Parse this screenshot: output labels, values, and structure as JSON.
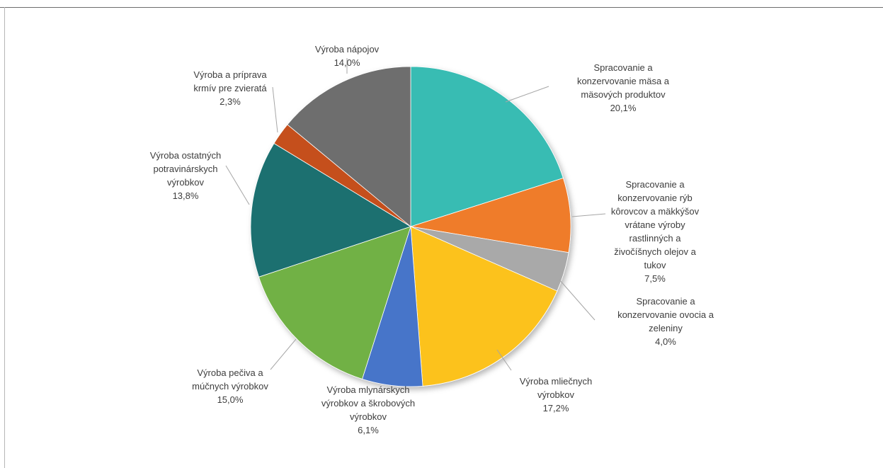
{
  "chart_data": {
    "type": "pie",
    "title": "",
    "slices": [
      {
        "name": "Spracovanie a konzervovanie mäsa a mäsových produktov",
        "label_lines": [
          "Spracovanie a",
          "konzervovanie mäsa a",
          "mäsových produktov",
          "20,1%"
        ],
        "value": 20.1,
        "color": "#39bcb3"
      },
      {
        "name": "Spracovanie a konzervovanie rýb kôrovcov a mäkkýšov vrátane výroby rastlinných a živočíšnych olejov a tukov",
        "label_lines": [
          "Spracovanie a",
          "konzervovanie rýb",
          "kôrovcov a mäkkýšov",
          "vrátane výroby",
          "rastlinných a",
          "živočíšnych olejov a",
          "tukov",
          "7,5%"
        ],
        "value": 7.5,
        "color": "#ef7b2a"
      },
      {
        "name": "Spracovanie a konzervovanie ovocia a zeleniny",
        "label_lines": [
          "Spracovanie a",
          "konzervovanie ovocia a",
          "zeleniny",
          "4,0%"
        ],
        "value": 4.0,
        "color": "#a9a9a9"
      },
      {
        "name": "Výroba mliečnych výrobkov",
        "label_lines": [
          "Výroba mliečnych",
          "výrobkov",
          "17,2%"
        ],
        "value": 17.2,
        "color": "#fcc21d"
      },
      {
        "name": "Výroba mlynárskych výrobkov a škrobových výrobkov",
        "label_lines": [
          "Výroba mlynárskych",
          "výrobkov a škrobových",
          "výrobkov",
          "6,1%"
        ],
        "value": 6.1,
        "color": "#4674c9"
      },
      {
        "name": "Výroba pečiva a múčnych výrobkov",
        "label_lines": [
          "Výroba pečiva a",
          "múčnych výrobkov",
          "15,0%"
        ],
        "value": 15.0,
        "color": "#71b145"
      },
      {
        "name": "Výroba ostatných potravinárskych výrobkov",
        "label_lines": [
          "Výroba ostatných",
          "potravinárskych",
          "výrobkov",
          "13,8%"
        ],
        "value": 13.8,
        "color": "#1e7070"
      },
      {
        "name": "Výroba a príprava krmív pre zvieratá",
        "label_lines": [
          "Výroba a príprava",
          "krmív pre zvieratá",
          "2,3%"
        ],
        "value": 2.3,
        "color": "#c5501b"
      },
      {
        "name": "Výroba nápojov",
        "label_lines": [
          "Výroba nápojov",
          "14,0%"
        ],
        "value": 14.0,
        "color": "#6e6e6e"
      }
    ],
    "start_angle": "12 o'clock",
    "direction": "clockwise",
    "legend": "none",
    "labels": "outside with leader lines"
  }
}
